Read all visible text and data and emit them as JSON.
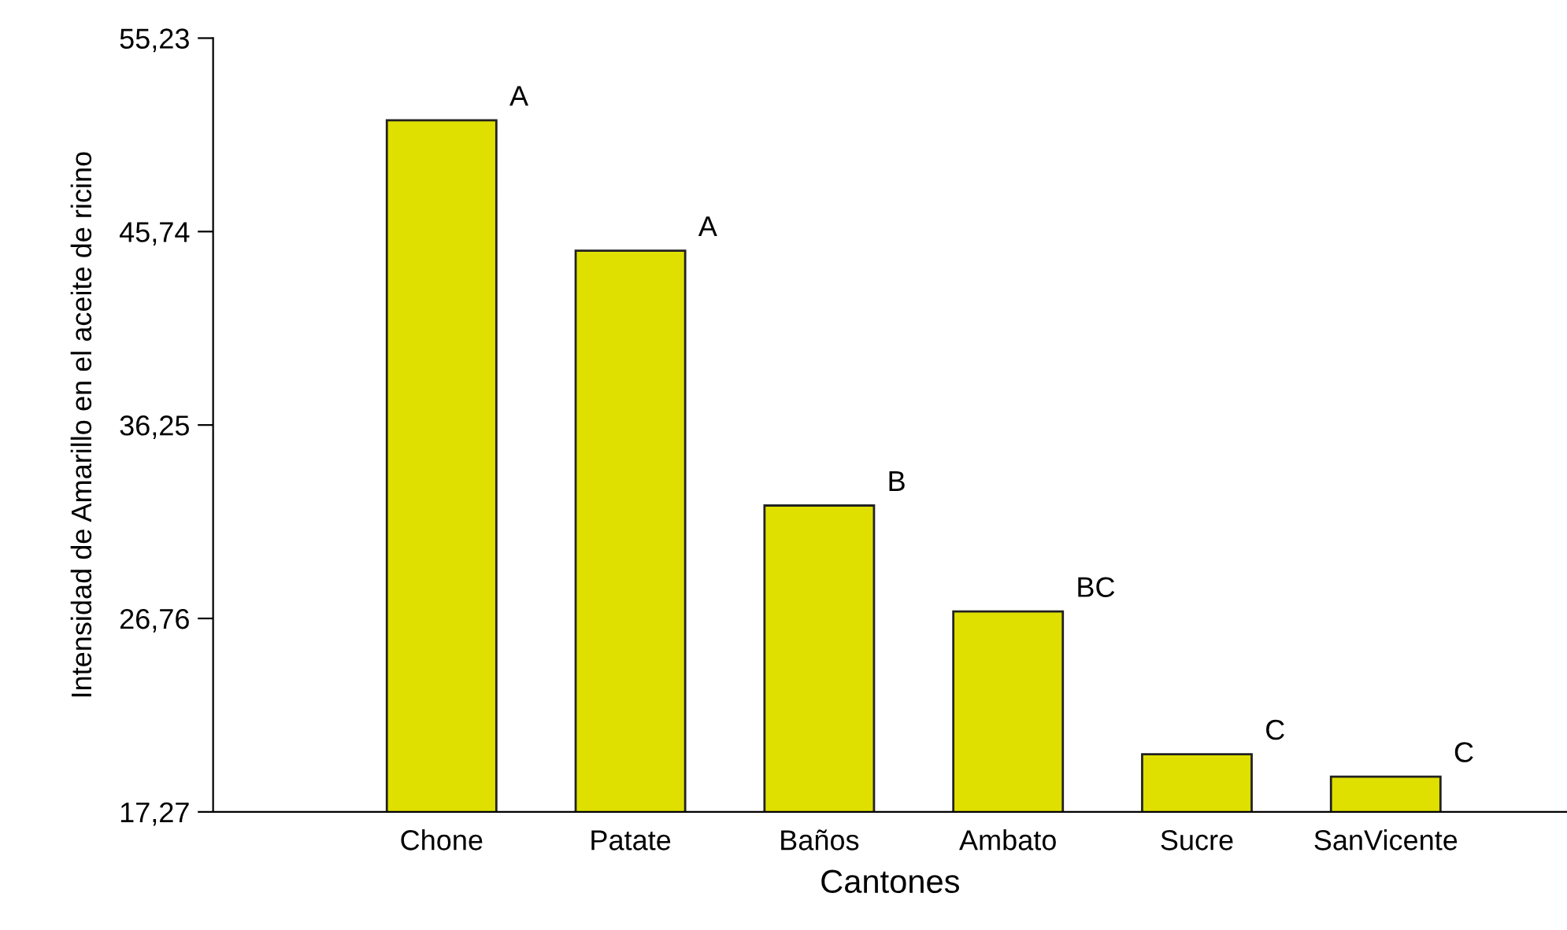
{
  "chart_data": {
    "type": "bar",
    "xlabel": "Cantones",
    "ylabel": "Intensidad de Amarillo en el aceite de ricino",
    "categories": [
      "Chone",
      "Patate",
      "Baños",
      "Ambato",
      "Sucre",
      "SanVicente"
    ],
    "values": [
      51.2,
      44.8,
      32.3,
      27.1,
      20.1,
      19.0
    ],
    "color": "#e0e000",
    "ylim": [
      17.27,
      55.23
    ],
    "yticks": [
      {
        "value": 17.27,
        "label": "17,27"
      },
      {
        "value": 26.76,
        "label": "26,76"
      },
      {
        "value": 36.25,
        "label": "36,25"
      },
      {
        "value": 45.74,
        "label": "45,74"
      },
      {
        "value": 55.23,
        "label": "55,23"
      }
    ],
    "grid": false,
    "legend": false,
    "annotations": [
      {
        "text": "A",
        "x": "Chone",
        "y": 51.2
      },
      {
        "text": "A",
        "x": "Patate",
        "y": 44.8
      },
      {
        "text": "B",
        "x": "Baños",
        "y": 32.3
      },
      {
        "text": "BC",
        "x": "Ambato",
        "y": 27.1
      },
      {
        "text": "C",
        "x": "Sucre",
        "y": 20.1
      },
      {
        "text": "C",
        "x": "SanVicente",
        "y": 19.0
      }
    ]
  }
}
